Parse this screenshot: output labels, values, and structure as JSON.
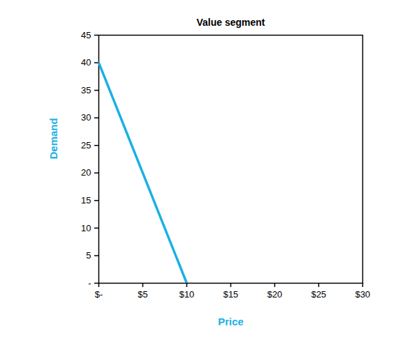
{
  "chart_data": {
    "type": "line",
    "title": "Value segment",
    "x_label": "Price",
    "y_label": "Demand",
    "series": [
      {
        "name": "Value segment",
        "color": "#1ab0e4",
        "x": [
          0,
          10
        ],
        "values": [
          40,
          0
        ]
      }
    ],
    "xlim": [
      0,
      30
    ],
    "xticks": [
      {
        "value": 0,
        "label": "$-"
      },
      {
        "value": 5,
        "label": "$5"
      },
      {
        "value": 10,
        "label": "$10"
      },
      {
        "value": 15,
        "label": "$15"
      },
      {
        "value": 20,
        "label": "$20"
      },
      {
        "value": 25,
        "label": "$25"
      },
      {
        "value": 30,
        "label": "$30"
      }
    ],
    "ylim": [
      0,
      45
    ],
    "yticks": [
      {
        "value": 0,
        "label": "-"
      },
      5,
      10,
      15,
      20,
      25,
      30,
      35,
      40,
      45
    ],
    "grid": false,
    "label_color": "#1ab0e4"
  }
}
